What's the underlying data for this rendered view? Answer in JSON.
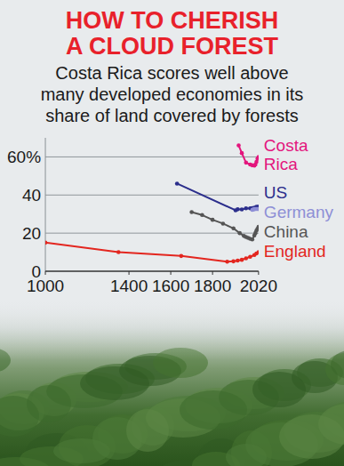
{
  "chart_data": {
    "type": "line",
    "title": "HOW TO CHERISH A CLOUD FOREST",
    "subtitle": "Costa Rica scores well above many developed economies in its share of land covered by forests",
    "xlim": [
      1000,
      2020
    ],
    "xticks": [
      1000,
      1400,
      1600,
      1800,
      2020
    ],
    "ylim": [
      0,
      70
    ],
    "yticks": [
      0,
      20,
      40,
      {
        "value": 60,
        "label": "60%"
      }
    ],
    "grid": true,
    "marker": "circle",
    "series": [
      {
        "name": "Costa Rica",
        "color": "#e3157d",
        "x": [
          1925,
          1940,
          1960,
          1980,
          1990,
          2000,
          2005,
          2010,
          2015,
          2020
        ],
        "values": [
          66,
          62,
          57,
          56,
          55.6,
          55.4,
          56,
          57.4,
          59,
          60
        ]
      },
      {
        "name": "US",
        "color": "#2b2e8c",
        "x": [
          1630,
          1910,
          1920,
          1940,
          1960,
          1980,
          1990,
          2000,
          2010,
          2020
        ],
        "values": [
          46,
          32,
          32.5,
          32.4,
          33,
          33,
          33.1,
          33.3,
          33.8,
          33.9
        ]
      },
      {
        "name": "Germany",
        "color": "#8e8fd6",
        "x": [
          1990,
          1995,
          2000,
          2005,
          2010,
          2015,
          2020
        ],
        "values": [
          32.2,
          32.4,
          32.6,
          32.7,
          32.7,
          32.7,
          32.7
        ]
      },
      {
        "name": "China",
        "color": "#555555",
        "x": [
          1700,
          1750,
          1800,
          1850,
          1900,
          1930,
          1950,
          1960,
          1970,
          1980,
          1990,
          2000,
          2005,
          2010,
          2015,
          2020
        ],
        "values": [
          31,
          29.5,
          27,
          25,
          22.5,
          20,
          18.5,
          18,
          17.5,
          17,
          16.7,
          18.8,
          20,
          21.3,
          22.3,
          23.3
        ]
      },
      {
        "name": "England",
        "color": "#e3261f",
        "x": [
          1000,
          1350,
          1650,
          1870,
          1900,
          1920,
          1940,
          1960,
          1980,
          2000,
          2010,
          2020
        ],
        "values": [
          15,
          10,
          8,
          5,
          5.2,
          5.6,
          6,
          6.8,
          7.6,
          8.5,
          9.3,
          10
        ]
      }
    ]
  }
}
